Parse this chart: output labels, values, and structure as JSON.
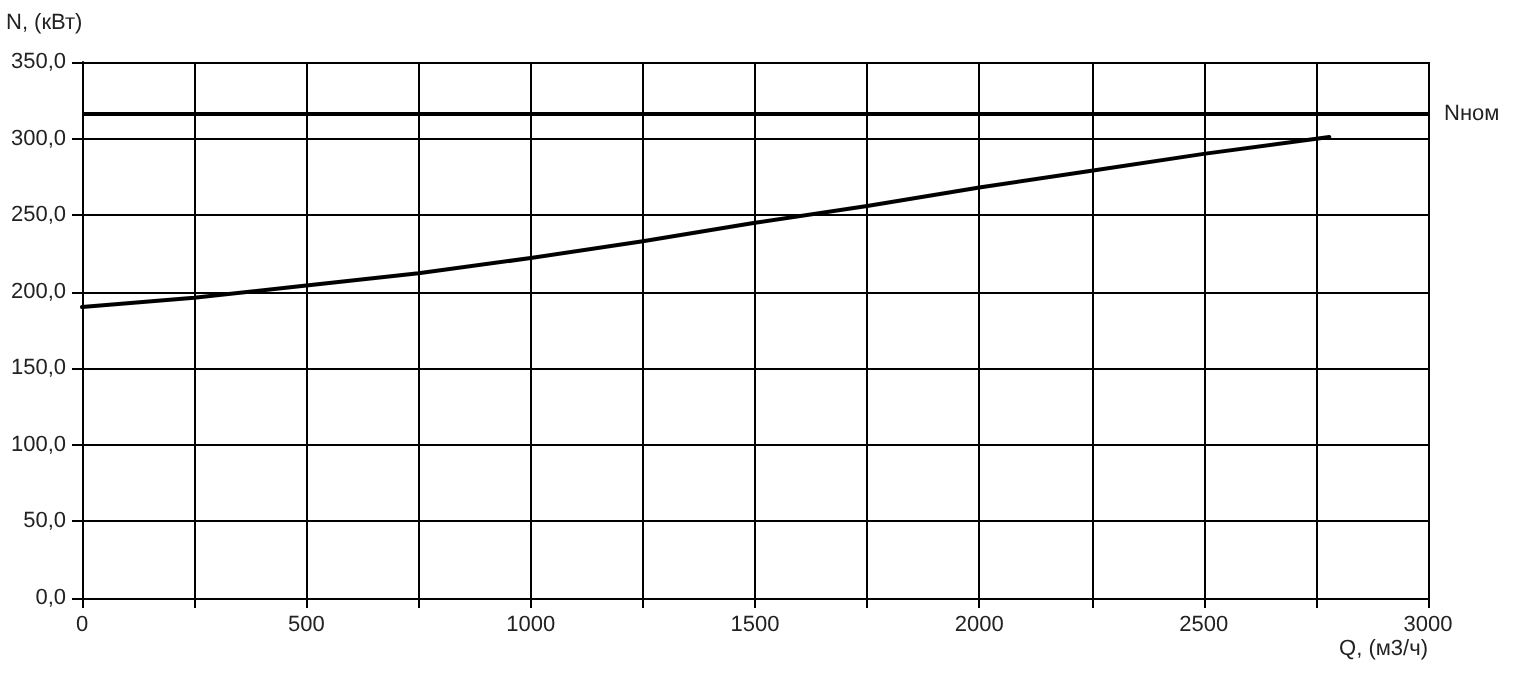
{
  "chart_data": {
    "type": "line",
    "xlabel": "Q, (м3/ч)",
    "ylabel": "N, (кВт)",
    "series": [
      {
        "color": "#000000",
        "x": [
          0,
          250,
          500,
          750,
          1000,
          1250,
          1500,
          1750,
          2000,
          2250,
          2500,
          2780
        ],
        "values": [
          190,
          196,
          204,
          212,
          222,
          233,
          245,
          256,
          268,
          279,
          290,
          301
        ]
      }
    ],
    "xlim": [
      0,
      3000
    ],
    "xticks": [
      0,
      {
        "value": 250,
        "label": null
      },
      500,
      {
        "value": 750,
        "label": null
      },
      1000,
      {
        "value": 1250,
        "label": null
      },
      1500,
      {
        "value": 1750,
        "label": null
      },
      2000,
      {
        "value": 2250,
        "label": null
      },
      2500,
      {
        "value": 2750,
        "label": null
      },
      3000
    ],
    "ylim": [
      0,
      350
    ],
    "yticks": [
      {
        "value": 0,
        "label": "0,0"
      },
      {
        "value": 50,
        "label": "50,0"
      },
      {
        "value": 100,
        "label": "100,0"
      },
      {
        "value": 150,
        "label": "150,0"
      },
      {
        "value": 200,
        "label": "200,0"
      },
      {
        "value": 250,
        "label": "250,0"
      },
      {
        "value": 300,
        "label": "300,0"
      },
      {
        "value": 350,
        "label": "350,0"
      }
    ],
    "ref_lines": [
      {
        "axis": "y",
        "value": 316,
        "label": "Nном",
        "color": "#000000"
      }
    ],
    "grid": true,
    "marker": "none",
    "line_style": "solid"
  }
}
